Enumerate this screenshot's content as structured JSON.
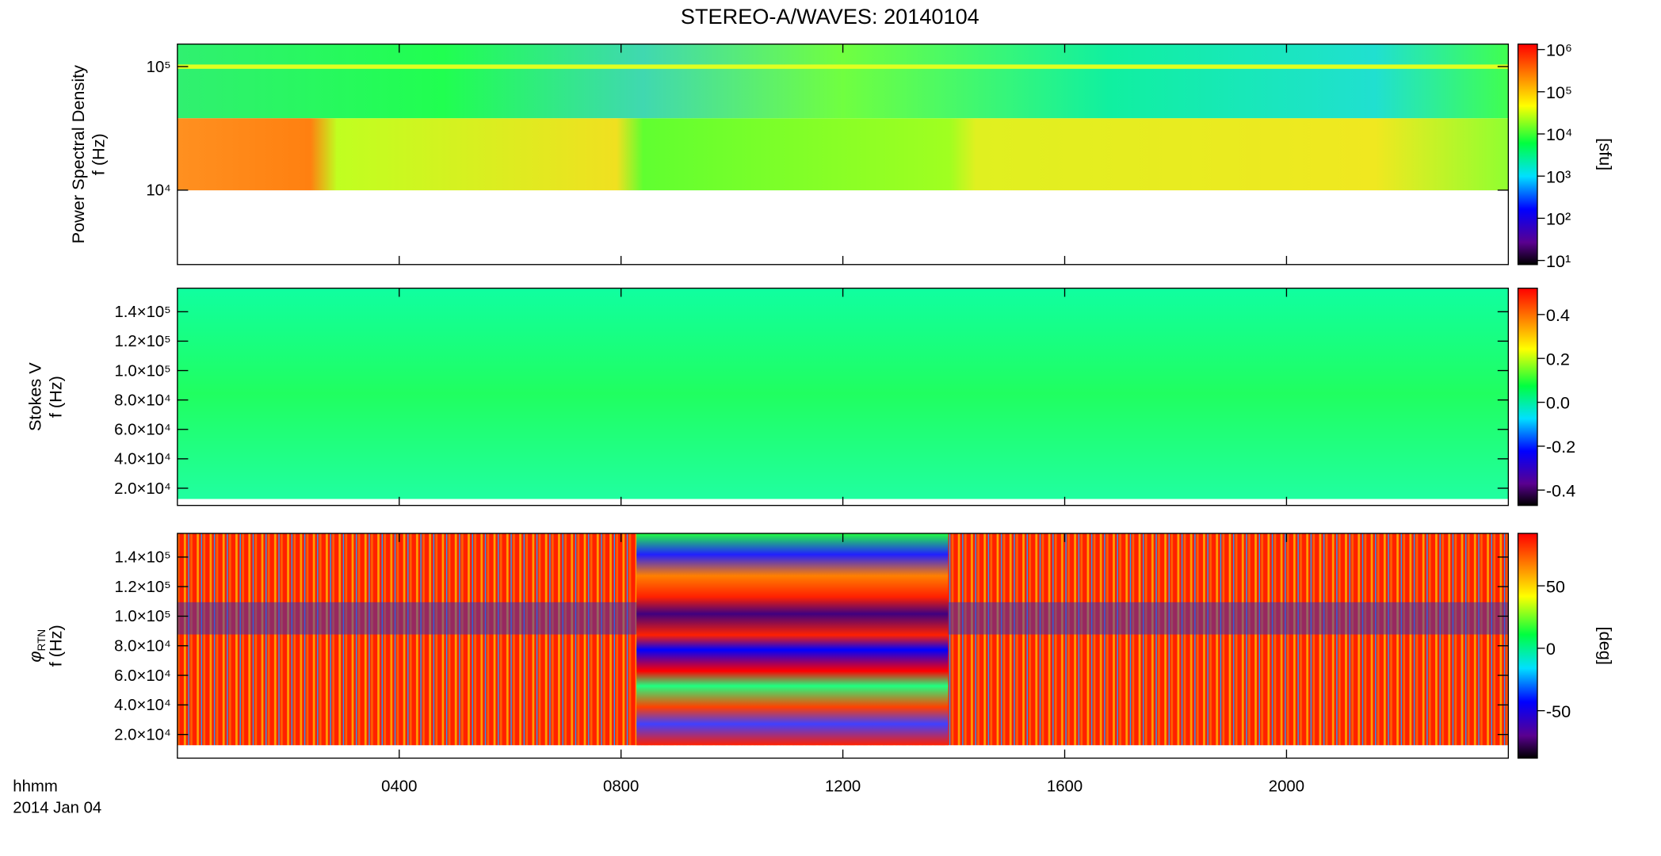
{
  "title": "STEREO-A/WAVES: 20140104",
  "shared_x": {
    "xlim": [
      0,
      24
    ],
    "xticks": [
      {
        "value": 4,
        "label": "0400"
      },
      {
        "value": 8,
        "label": "0800"
      },
      {
        "value": 12,
        "label": "1200"
      },
      {
        "value": 16,
        "label": "1600"
      },
      {
        "value": 20,
        "label": "2000"
      }
    ],
    "label": "hhmm",
    "date": "2014 Jan 04"
  },
  "chart_data": [
    {
      "type": "heatmap",
      "ylabel": [
        "Power Spectral Density",
        "f (Hz)"
      ],
      "log_y": true,
      "ylim": [
        2500,
        152000
      ],
      "yticks": [
        {
          "value": 10000,
          "label": "10⁴"
        },
        {
          "value": 100000,
          "label": "10⁵"
        }
      ],
      "colorbar": {
        "log": true,
        "clim": [
          8,
          1350000
        ],
        "label": "[sfu]",
        "ticks": [
          {
            "value": 10,
            "label": "10¹"
          },
          {
            "value": 100,
            "label": "10²"
          },
          {
            "value": 1000,
            "label": "10³"
          },
          {
            "value": 10000,
            "label": "10⁴"
          },
          {
            "value": 100000,
            "label": "10⁵"
          },
          {
            "value": 1000000,
            "label": "10⁶"
          }
        ]
      }
    },
    {
      "type": "heatmap",
      "ylabel": [
        "Stokes V",
        "f (Hz)"
      ],
      "log_y": false,
      "ylim": [
        8300,
        156000
      ],
      "yticks": [
        {
          "value": 20000,
          "label": "2.0×10⁴"
        },
        {
          "value": 40000,
          "label": "4.0×10⁴"
        },
        {
          "value": 60000,
          "label": "6.0×10⁴"
        },
        {
          "value": 80000,
          "label": "8.0×10⁴"
        },
        {
          "value": 100000,
          "label": "1.0×10⁵"
        },
        {
          "value": 120000,
          "label": "1.2×10⁵"
        },
        {
          "value": 140000,
          "label": "1.4×10⁵"
        }
      ],
      "colorbar": {
        "log": false,
        "clim": [
          -0.47,
          0.52
        ],
        "ticks": [
          {
            "value": -0.4,
            "label": "-0.4"
          },
          {
            "value": -0.2,
            "label": "-0.2"
          },
          {
            "value": 0,
            "label": "0.0"
          },
          0.2,
          0.4
        ]
      }
    },
    {
      "type": "heatmap",
      "ylabel_symbol": "φ",
      "ylabel_subscript": "RTN",
      "ylabel": [
        "f (Hz)"
      ],
      "log_y": false,
      "ylim": [
        4000,
        156000
      ],
      "yticks": [
        {
          "value": 20000,
          "label": "2.0×10⁴"
        },
        {
          "value": 40000,
          "label": "4.0×10⁴"
        },
        {
          "value": 60000,
          "label": "6.0×10⁴"
        },
        {
          "value": 80000,
          "label": "8.0×10⁴"
        },
        {
          "value": 100000,
          "label": "1.0×10⁵"
        },
        {
          "value": 120000,
          "label": "1.2×10⁵"
        },
        {
          "value": 140000,
          "label": "1.4×10⁵"
        }
      ],
      "colorbar": {
        "log": false,
        "clim": [
          -88,
          92
        ],
        "label": "[deg]",
        "ticks": [
          -50,
          0,
          50
        ]
      }
    }
  ]
}
